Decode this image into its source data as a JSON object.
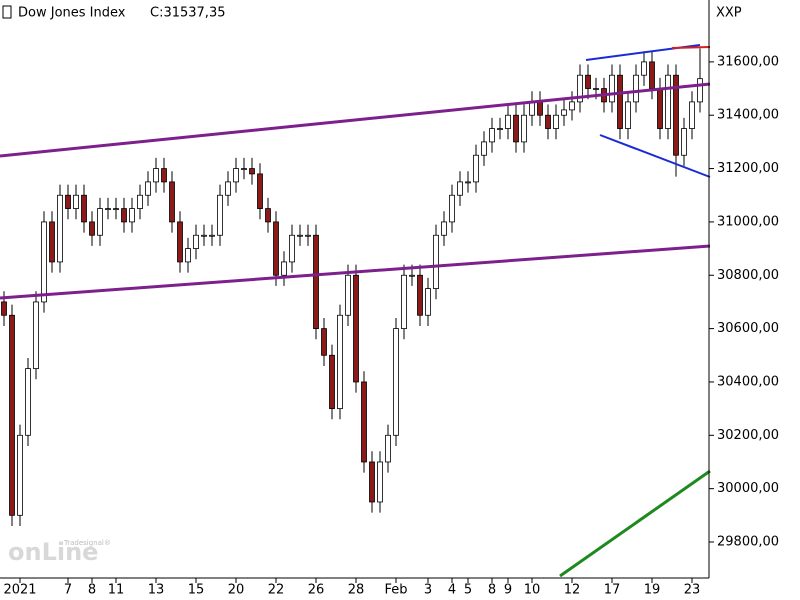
{
  "chart_data": {
    "type": "candlestick",
    "title": "Dow Jones Index",
    "last_close_label": "C:31537,35",
    "symbol": "XXP",
    "watermark": {
      "brand": "Tradesignal®",
      "product": "onLine"
    },
    "categories": [
      null,
      null,
      "2021",
      null,
      null,
      null,
      null,
      null,
      "7",
      null,
      null,
      "8",
      null,
      null,
      "11",
      null,
      null,
      null,
      null,
      "13",
      null,
      null,
      null,
      null,
      "15",
      null,
      null,
      null,
      null,
      "20",
      null,
      null,
      null,
      null,
      "22",
      null,
      null,
      null,
      null,
      "26",
      null,
      null,
      null,
      null,
      "28",
      null,
      null,
      null,
      null,
      "Feb",
      null,
      null,
      null,
      "3",
      null,
      null,
      "4",
      null,
      "5",
      null,
      null,
      "8",
      null,
      "9",
      null,
      null,
      "10",
      null,
      null,
      null,
      null,
      "12",
      null,
      null,
      null,
      null,
      "17",
      null,
      null,
      null,
      null,
      "19",
      null,
      null,
      null,
      null,
      "23",
      null
    ],
    "open": [
      30700,
      30650,
      29900,
      30200,
      30450,
      30700,
      31000,
      30850,
      31100,
      31050,
      31100,
      31000,
      30950,
      31050,
      31050,
      31050,
      31000,
      31050,
      31100,
      31150,
      31200,
      31150,
      31000,
      30850,
      30900,
      30950,
      30950,
      30950,
      31100,
      31150,
      31200,
      31200,
      31180,
      31050,
      31000,
      30800,
      30850,
      30950,
      30950,
      30950,
      30600,
      30500,
      30300,
      30650,
      30800,
      30400,
      30100,
      29950,
      30100,
      30200,
      30600,
      30800,
      30800,
      30650,
      30750,
      30950,
      31000,
      31100,
      31150,
      31150,
      31250,
      31300,
      31350,
      31350,
      31400,
      31300,
      31400,
      31450,
      31400,
      31350,
      31400,
      31420,
      31450,
      31550,
      31500,
      31500,
      31450,
      31550,
      31350,
      31450,
      31550,
      31600,
      31500,
      31350,
      31550,
      31250,
      31350,
      31450
    ],
    "high": [
      30740,
      30690,
      30240,
      30490,
      30740,
      31040,
      31040,
      31140,
      31140,
      31140,
      31140,
      31040,
      31090,
      31090,
      31090,
      31090,
      31090,
      31140,
      31190,
      31240,
      31240,
      31190,
      31040,
      30940,
      30990,
      30990,
      30990,
      31140,
      31190,
      31240,
      31240,
      31240,
      31220,
      31090,
      31040,
      30890,
      30990,
      30990,
      30990,
      30990,
      30640,
      30540,
      30690,
      30840,
      30840,
      30440,
      30140,
      30140,
      30240,
      30640,
      30840,
      30840,
      30840,
      30790,
      30990,
      31040,
      31140,
      31190,
      31190,
      31290,
      31340,
      31390,
      31390,
      31440,
      31440,
      31440,
      31490,
      31490,
      31440,
      31440,
      31460,
      31490,
      31590,
      31590,
      31540,
      31540,
      31590,
      31590,
      31490,
      31590,
      31640,
      31640,
      31540,
      31590,
      31590,
      31390,
      31490,
      31650
    ],
    "low": [
      30610,
      29860,
      29860,
      30160,
      30410,
      30660,
      30810,
      30810,
      31010,
      31010,
      30960,
      30910,
      30910,
      31010,
      31010,
      30960,
      30960,
      31010,
      31060,
      31110,
      31110,
      30960,
      30810,
      30810,
      30860,
      30910,
      30910,
      30910,
      31060,
      31110,
      31160,
      31140,
      31010,
      30960,
      30760,
      30760,
      30810,
      30910,
      30910,
      30560,
      30460,
      30260,
      30260,
      30610,
      30360,
      30060,
      29910,
      29910,
      30060,
      30160,
      30560,
      30760,
      30610,
      30610,
      30710,
      30910,
      30960,
      31060,
      31110,
      31110,
      31210,
      31260,
      31310,
      31310,
      31260,
      31260,
      31360,
      31360,
      31310,
      31310,
      31360,
      31380,
      31410,
      31460,
      31460,
      31410,
      31410,
      31310,
      31310,
      31410,
      31510,
      31460,
      31310,
      31310,
      31170,
      31210,
      31310,
      31410
    ],
    "close": [
      30650,
      29900,
      30200,
      30450,
      30700,
      31000,
      30850,
      31100,
      31050,
      31100,
      31000,
      30950,
      31050,
      31050,
      31050,
      31000,
      31050,
      31100,
      31150,
      31200,
      31150,
      31000,
      30850,
      30900,
      30950,
      30950,
      30950,
      31100,
      31150,
      31200,
      31200,
      31180,
      31050,
      31000,
      30800,
      30850,
      30950,
      30950,
      30950,
      30600,
      30500,
      30300,
      30650,
      30800,
      30400,
      30100,
      29950,
      30100,
      30200,
      30600,
      30800,
      30800,
      30650,
      30750,
      30950,
      31000,
      31100,
      31150,
      31150,
      31250,
      31300,
      31350,
      31350,
      31400,
      31300,
      31400,
      31450,
      31400,
      31350,
      31400,
      31420,
      31450,
      31550,
      31500,
      31500,
      31450,
      31550,
      31350,
      31450,
      31550,
      31600,
      31500,
      31350,
      31550,
      31250,
      31350,
      31450,
      31537
    ],
    "up_color": "#ffffff",
    "down_color": "#8b1a1a",
    "wick_color": "#000000",
    "title_close_color": "#2ea02e",
    "ylim": [
      29665,
      31832
    ],
    "yticks": [
      {
        "value": 29800,
        "label": "29800,00"
      },
      {
        "value": 30000,
        "label": "30000,00"
      },
      {
        "value": 30200,
        "label": "30200,00"
      },
      {
        "value": 30400,
        "label": "30400,00"
      },
      {
        "value": 30600,
        "label": "30600,00"
      },
      {
        "value": 30800,
        "label": "30800,00"
      },
      {
        "value": 31000,
        "label": "31000,00"
      },
      {
        "value": 31200,
        "label": "31200,00"
      },
      {
        "value": 31400,
        "label": "31400,00"
      },
      {
        "value": 31600,
        "label": "31600,00"
      }
    ]
  }
}
